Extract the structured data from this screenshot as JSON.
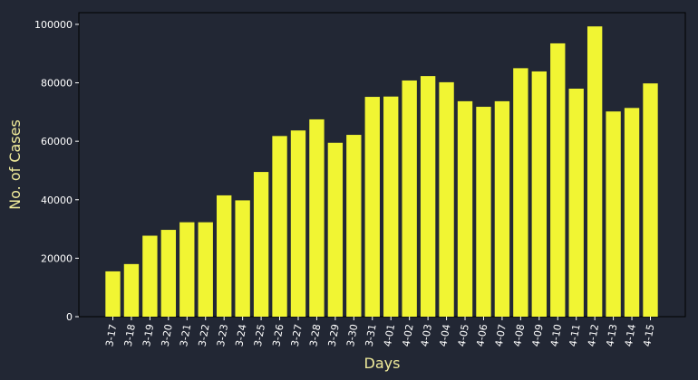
{
  "chart_data": {
    "type": "bar",
    "title": "",
    "xlabel": "Days",
    "ylabel": "No. of Cases",
    "ylim": [
      0,
      104000
    ],
    "yticks": [
      0,
      20000,
      40000,
      60000,
      80000,
      100000
    ],
    "grid": false,
    "categories": [
      "3-17",
      "3-18",
      "3-19",
      "3-20",
      "3-21",
      "3-22",
      "3-23",
      "3-24",
      "3-25",
      "3-26",
      "3-27",
      "3-28",
      "3-29",
      "3-30",
      "3-31",
      "4-01",
      "4-02",
      "4-03",
      "4-04",
      "4-05",
      "4-06",
      "4-07",
      "4-08",
      "4-09",
      "4-10",
      "4-11",
      "4-12",
      "4-13",
      "4-14",
      "4-15"
    ],
    "values": [
      15500,
      18000,
      27700,
      29700,
      32300,
      32300,
      41500,
      39800,
      49500,
      61800,
      63700,
      67500,
      59500,
      62200,
      75200,
      75300,
      80800,
      82300,
      80200,
      73700,
      71800,
      73700,
      85000,
      83900,
      93500,
      78000,
      99300,
      70200,
      71400,
      79800
    ],
    "bar_color": "#f1f533",
    "background_color": "#222734",
    "axis_color": "#000000",
    "label_color": "#f1ec9b",
    "tick_color": "#ffffff"
  }
}
